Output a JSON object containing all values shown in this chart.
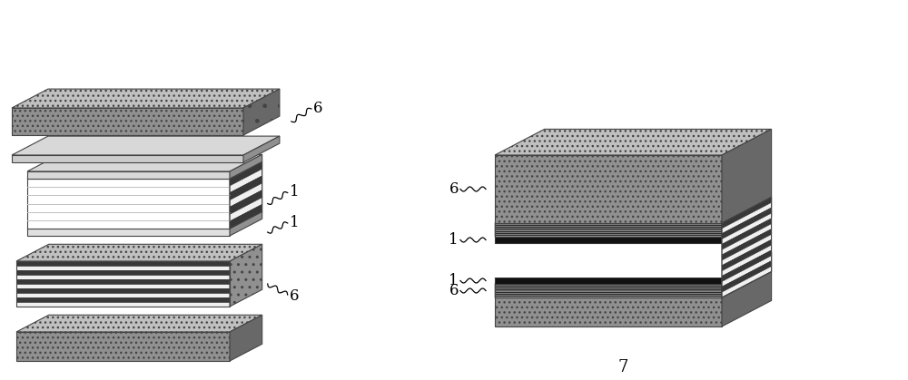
{
  "bg_color": "#ffffff",
  "label_fontsize": 12,
  "fig7_fontsize": 13,
  "fig_width": 10.0,
  "fig_height": 4.19,
  "gray_tex": "#c0c0c0",
  "gray_side": "#909090",
  "gray_dark_side": "#686868",
  "stripe_dark": "#383838",
  "stripe_light": "#f0f0f0",
  "white_col": "#ffffff",
  "black_col": "#111111",
  "med_gray": "#aaaaaa",
  "light_gray": "#d8d8d8",
  "sx_r": 0.42,
  "sy_r": 0.22
}
